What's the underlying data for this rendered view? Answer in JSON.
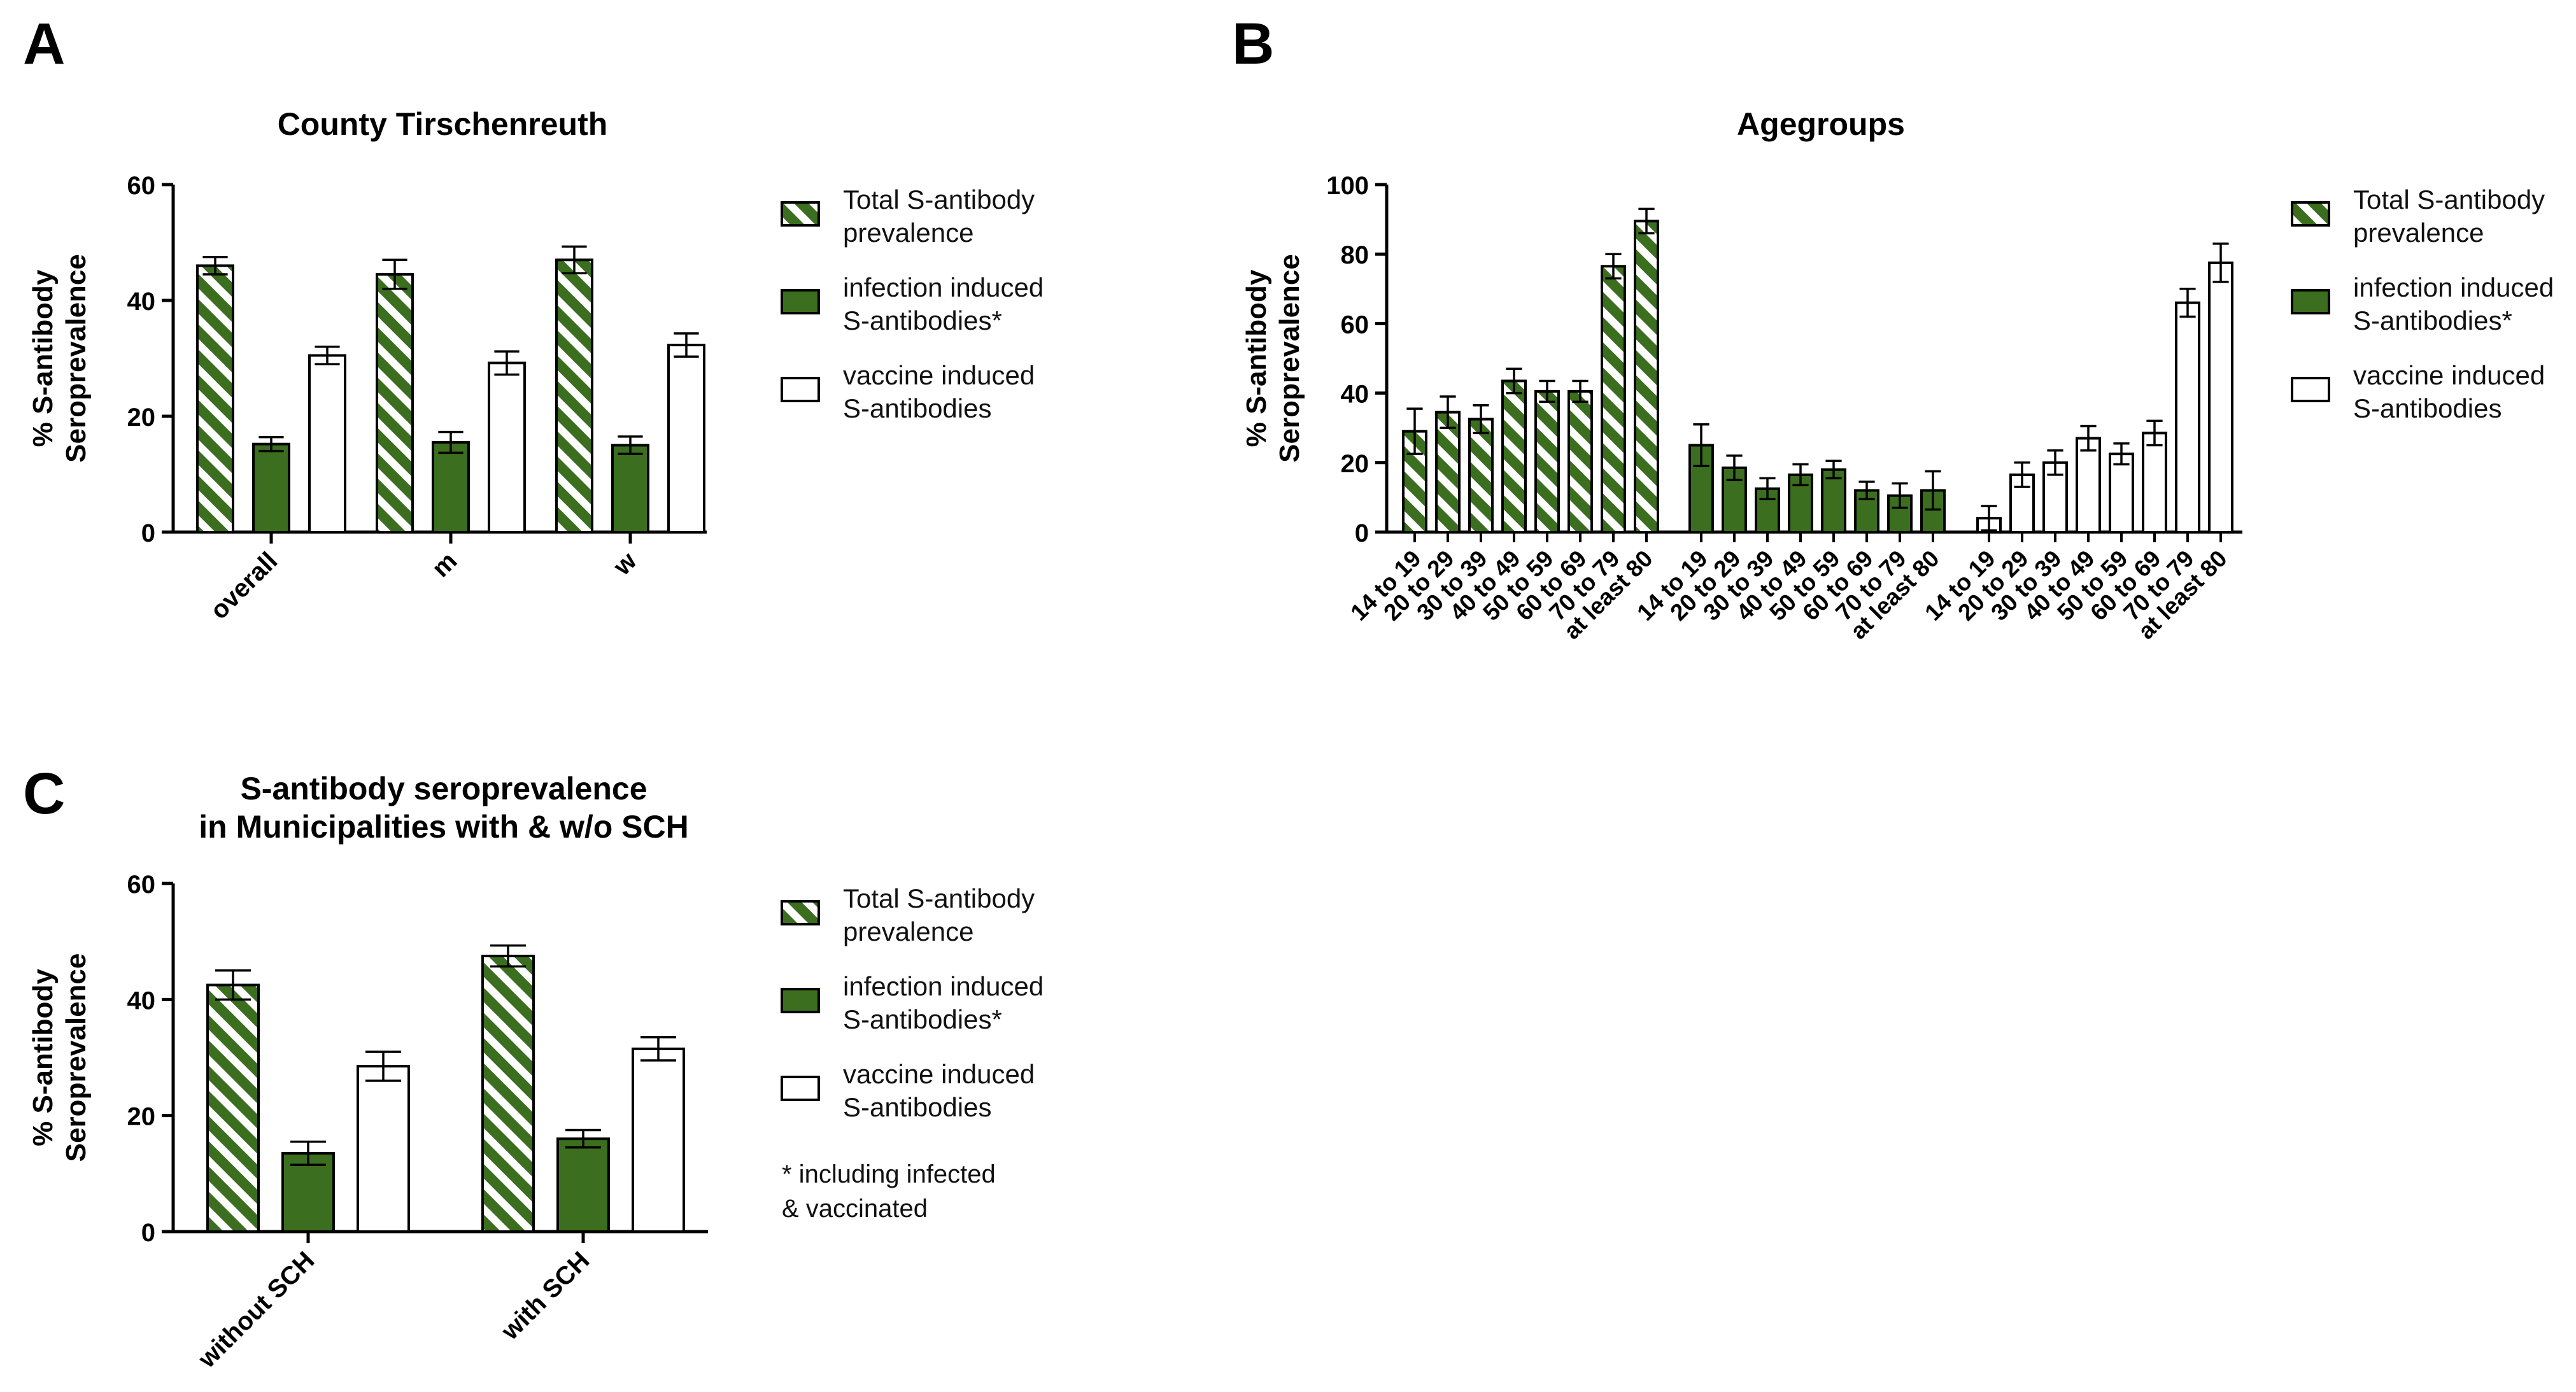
{
  "colors": {
    "green": "#3b6e1e",
    "stripe_light": "#ffffff",
    "white_bar": "#ffffff",
    "axis": "#000000"
  },
  "legend": {
    "total": [
      "Total S-antibody",
      "prevalence"
    ],
    "infection": [
      "infection induced",
      "S-antibodies*"
    ],
    "vaccine": [
      "vaccine induced",
      "S-antibodies"
    ]
  },
  "footnote": [
    "* including infected",
    "& vaccinated"
  ],
  "chart_data": [
    {
      "panel": "A",
      "type": "bar",
      "title": [
        "County Tirschenreuth"
      ],
      "ylabel": [
        "% S-antibody",
        "Seroprevalence"
      ],
      "xlabel": "",
      "ylim": [
        0,
        60
      ],
      "yticks": [
        0,
        20,
        40,
        60
      ],
      "categories": [
        "overall",
        "m",
        "w"
      ],
      "series": [
        {
          "name": "Total S-antibody prevalence",
          "style": "hatched",
          "values": [
            46,
            44.5,
            47
          ],
          "errors": [
            1.5,
            2.5,
            2.3
          ]
        },
        {
          "name": "infection induced S-antibodies*",
          "style": "green",
          "values": [
            15.2,
            15.5,
            15
          ],
          "errors": [
            1.2,
            1.8,
            1.5
          ]
        },
        {
          "name": "vaccine induced S-antibodies",
          "style": "white",
          "values": [
            30.5,
            29.2,
            32.3
          ],
          "errors": [
            1.5,
            2,
            2
          ]
        }
      ]
    },
    {
      "panel": "B",
      "type": "bar",
      "title": [
        "Agegroups"
      ],
      "ylabel": [
        "% S-antibody",
        "Seroprevalence"
      ],
      "xlabel": "",
      "ylim": [
        0,
        100
      ],
      "yticks": [
        0,
        20,
        40,
        60,
        80,
        100
      ],
      "groups": [
        {
          "name": "Total S-antibody prevalence",
          "style": "hatched",
          "categories": [
            "14 to 19",
            "20 to 29",
            "30 to 39",
            "40 to 49",
            "50 to 59",
            "60 to 69",
            "70 to 79",
            "at least 80"
          ],
          "values": [
            29,
            34.5,
            32.5,
            43.5,
            40.5,
            40.5,
            76.5,
            89.5
          ],
          "errors": [
            6.5,
            4.5,
            4,
            3.5,
            3,
            3,
            3.5,
            3.5
          ]
        },
        {
          "name": "infection induced S-antibodies*",
          "style": "green",
          "categories": [
            "14 to 19",
            "20 to 29",
            "30 to 39",
            "40 to 49",
            "50 to 59",
            "60 to 69",
            "70 to 79",
            "at least 80"
          ],
          "values": [
            25,
            18.5,
            12.5,
            16.5,
            18,
            12,
            10.5,
            12
          ],
          "errors": [
            6,
            3.5,
            3,
            3,
            2.5,
            2.5,
            3.5,
            5.5
          ]
        },
        {
          "name": "vaccine induced S-antibodies",
          "style": "white",
          "categories": [
            "14 to 19",
            "20 to 29",
            "30 to 39",
            "40 to 49",
            "50 to 59",
            "60 to 69",
            "70 to 79",
            "at least 80"
          ],
          "values": [
            4,
            16.5,
            20,
            27,
            22.5,
            28.5,
            66,
            77.5
          ],
          "errors": [
            3.5,
            3.5,
            3.5,
            3.5,
            3,
            3.5,
            4,
            5.5
          ]
        }
      ]
    },
    {
      "panel": "C",
      "type": "bar",
      "title": [
        "S-antibody seroprevalence",
        "in Municipalities with & w/o SCH"
      ],
      "ylabel": [
        "% S-antibody",
        "Seroprevalence"
      ],
      "xlabel": "",
      "ylim": [
        0,
        60
      ],
      "yticks": [
        0,
        20,
        40,
        60
      ],
      "categories": [
        "without SCH",
        "with SCH"
      ],
      "series": [
        {
          "name": "Total S-antibody prevalence",
          "style": "hatched",
          "values": [
            42.5,
            47.5
          ],
          "errors": [
            2.5,
            1.8
          ]
        },
        {
          "name": "infection induced S-antibodies*",
          "style": "green",
          "values": [
            13.5,
            16
          ],
          "errors": [
            2,
            1.5
          ]
        },
        {
          "name": "vaccine induced S-antibodies",
          "style": "white",
          "values": [
            28.5,
            31.5
          ],
          "errors": [
            2.5,
            2
          ]
        }
      ]
    }
  ]
}
